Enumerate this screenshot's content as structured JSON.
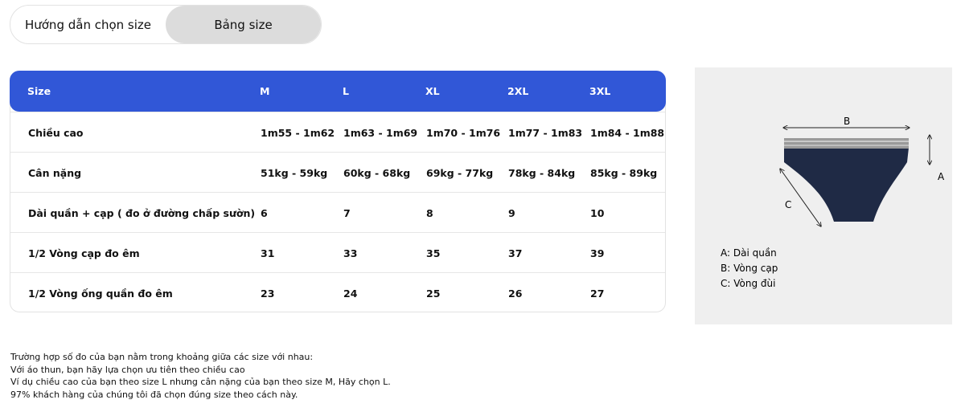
{
  "tabs": {
    "items": [
      "Hướng dẫn chọn size",
      "Bảng size"
    ],
    "active": 1
  },
  "table": {
    "header": [
      "Size",
      "M",
      "L",
      "XL",
      "2XL",
      "3XL"
    ],
    "rows": [
      [
        "Chiều cao",
        "1m55 - 1m62",
        "1m63 - 1m69",
        "1m70 - 1m76",
        "1m77 - 1m83",
        "1m84 - 1m88"
      ],
      [
        "Cân nặng",
        "51kg - 59kg",
        "60kg - 68kg",
        "69kg - 77kg",
        "78kg - 84kg",
        "85kg - 89kg"
      ],
      [
        "Dài quần + cạp ( đo ở đường chấp sườn)",
        6,
        7,
        8,
        9,
        10
      ],
      [
        "1/2 Vòng cạp đo êm",
        31,
        33,
        35,
        37,
        39
      ],
      [
        "1/2 Vòng ống quần đo êm",
        23,
        24,
        25,
        26,
        27
      ]
    ]
  },
  "image": {
    "labels": [
      "A",
      "B",
      "C"
    ],
    "legend": [
      "A: Dài quần",
      "B: Vòng cạp",
      "C: Vòng đùi"
    ]
  },
  "notes": [
    "Trường hợp số đo của bạn nằm trong khoảng giữa các size với nhau:",
    "Với áo thun, bạn hãy lựa chọn ưu tiên theo chiều cao",
    "Ví dụ chiều cao của bạn theo size L nhưng cân nặng của bạn theo size M, Hãy chọn L.",
    "97% khách hàng của chúng tôi đã chọn đúng size theo cách này."
  ]
}
